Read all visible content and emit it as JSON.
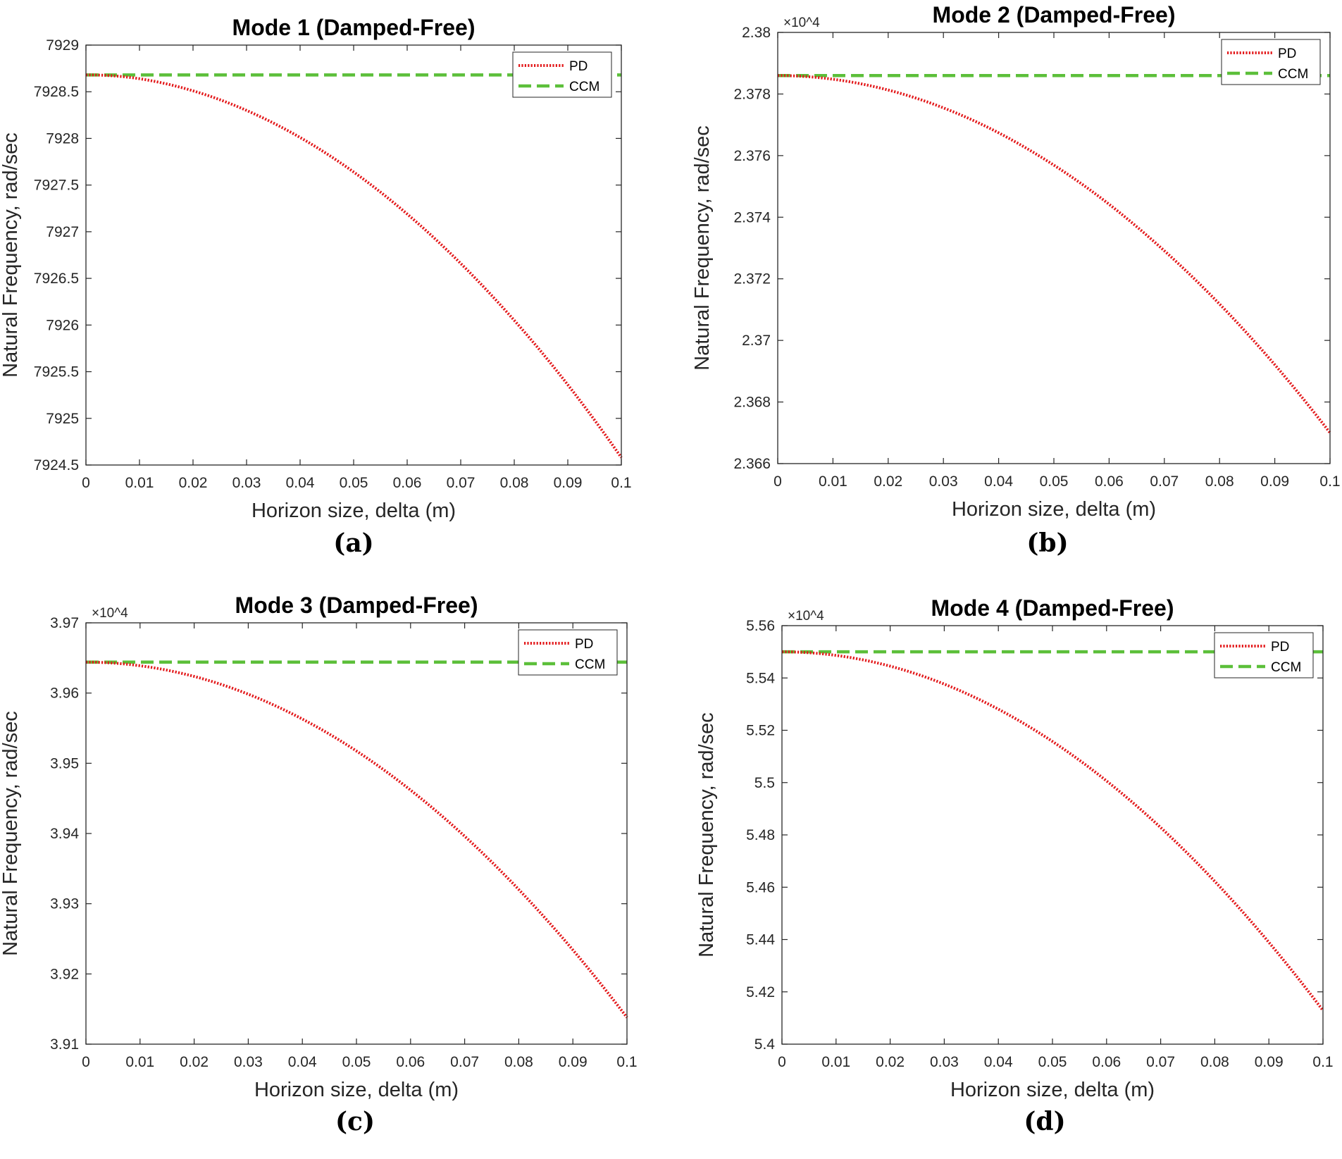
{
  "figure": {
    "x_tick_labels": [
      "0",
      "0.01",
      "0.02",
      "0.03",
      "0.04",
      "0.05",
      "0.06",
      "0.07",
      "0.08",
      "0.09",
      "0.1"
    ],
    "legend": [
      "PD",
      "CCM"
    ],
    "colors": {
      "PD": "#e31a1c",
      "CCM": "#5cbf3a"
    }
  },
  "chart_data": [
    {
      "type": "line",
      "panel": "(a)",
      "title": "Mode 1 (Damped-Free)",
      "xlabel": "Horizon size, delta (m)",
      "ylabel": "Natural Frequency, rad/sec",
      "exponent_label": "",
      "xlim": [
        0,
        0.1
      ],
      "ylim": [
        7924.5,
        7929
      ],
      "y_tick_labels": [
        "7924.5",
        "7925",
        "7925.5",
        "7926",
        "7926.5",
        "7927",
        "7927.5",
        "7928",
        "7928.5",
        "7929"
      ],
      "series": [
        {
          "name": "PD",
          "style": "dotted",
          "x": [
            0,
            0.01,
            0.02,
            0.03,
            0.04,
            0.05,
            0.06,
            0.07,
            0.08,
            0.09,
            0.1
          ],
          "y": [
            7928.68,
            7928.64,
            7928.51,
            7928.3,
            7928.01,
            7927.64,
            7927.19,
            7926.66,
            7926.05,
            7925.36,
            7924.58
          ]
        },
        {
          "name": "CCM",
          "style": "dashed",
          "x": [
            0,
            0.1
          ],
          "y": [
            7928.68,
            7928.68
          ]
        }
      ]
    },
    {
      "type": "line",
      "panel": "(b)",
      "title": "Mode 2 (Damped-Free)",
      "xlabel": "Horizon size, delta (m)",
      "ylabel": "Natural Frequency, rad/sec",
      "exponent_label": "×10^4",
      "xlim": [
        0,
        0.1
      ],
      "ylim": [
        2.366,
        2.38
      ],
      "y_tick_labels": [
        "2.366",
        "2.368",
        "2.37",
        "2.372",
        "2.374",
        "2.376",
        "2.378",
        "2.38"
      ],
      "series": [
        {
          "name": "PD",
          "style": "dotted",
          "x": [
            0,
            0.01,
            0.02,
            0.03,
            0.04,
            0.05,
            0.06,
            0.07,
            0.08,
            0.09,
            0.1
          ],
          "y": [
            2.3786,
            2.37848,
            2.37813,
            2.37755,
            2.37674,
            2.37569,
            2.37442,
            2.37291,
            2.37118,
            2.36921,
            2.367
          ]
        },
        {
          "name": "CCM",
          "style": "dashed",
          "x": [
            0,
            0.1
          ],
          "y": [
            2.3786,
            2.3786
          ]
        }
      ]
    },
    {
      "type": "line",
      "panel": "(c)",
      "title": "Mode 3 (Damped-Free)",
      "xlabel": "Horizon size, delta (m)",
      "ylabel": "Natural Frequency, rad/sec",
      "exponent_label": "×10^4",
      "xlim": [
        0,
        0.1
      ],
      "ylim": [
        3.91,
        3.97
      ],
      "y_tick_labels": [
        "3.91",
        "3.92",
        "3.93",
        "3.94",
        "3.95",
        "3.96",
        "3.97"
      ],
      "series": [
        {
          "name": "PD",
          "style": "dotted",
          "x": [
            0,
            0.01,
            0.02,
            0.03,
            0.04,
            0.05,
            0.06,
            0.07,
            0.08,
            0.09,
            0.1
          ],
          "y": [
            3.9644,
            3.96389,
            3.96237,
            3.95984,
            3.9563,
            3.95175,
            3.94618,
            3.93961,
            3.93202,
            3.92342,
            3.9138
          ]
        },
        {
          "name": "CCM",
          "style": "dashed",
          "x": [
            0,
            0.1
          ],
          "y": [
            3.9644,
            3.9644
          ]
        }
      ]
    },
    {
      "type": "line",
      "panel": "(d)",
      "title": "Mode 4 (Damped-Free)",
      "xlabel": "Horizon size, delta (m)",
      "ylabel": "Natural Frequency, rad/sec",
      "exponent_label": "×10^4",
      "xlim": [
        0,
        0.1
      ],
      "ylim": [
        5.4,
        5.56
      ],
      "y_tick_labels": [
        "5.4",
        "5.42",
        "5.44",
        "5.46",
        "5.48",
        "5.5",
        "5.52",
        "5.54",
        "5.56"
      ],
      "series": [
        {
          "name": "PD",
          "style": "dotted",
          "x": [
            0,
            0.01,
            0.02,
            0.03,
            0.04,
            0.05,
            0.06,
            0.07,
            0.08,
            0.09,
            0.1
          ],
          "y": [
            5.55,
            5.54863,
            5.54452,
            5.53766,
            5.52806,
            5.51572,
            5.50064,
            5.48281,
            5.46224,
            5.43893,
            5.41288
          ]
        },
        {
          "name": "CCM",
          "style": "dashed",
          "x": [
            0,
            0.1
          ],
          "y": [
            5.55,
            5.55
          ]
        }
      ]
    }
  ]
}
